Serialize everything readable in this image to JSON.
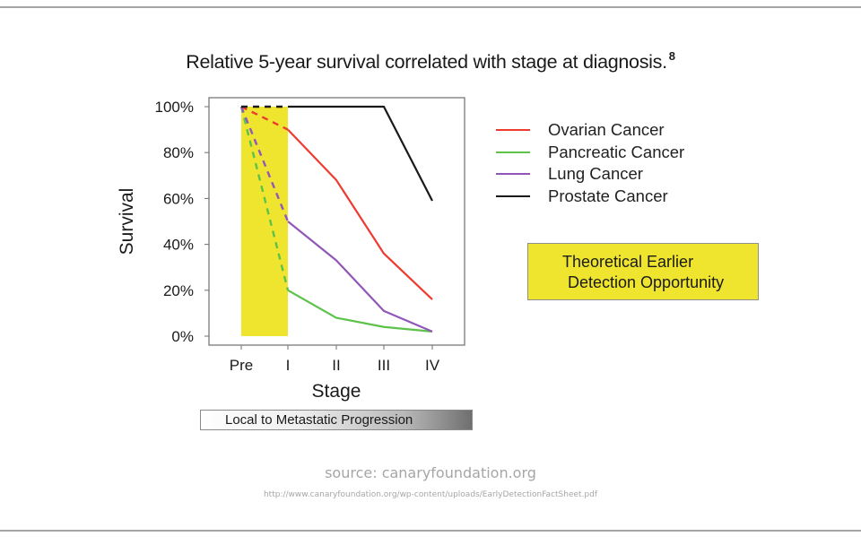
{
  "slide": {
    "title": "Relative 5-year survival correlated with stage at diagnosis.",
    "title_footnote": "8",
    "source_label": "source: canaryfoundation.org",
    "source_url": "http://www.canaryfoundation.org/wp-content/uploads/EarlyDetectionFactSheet.pdf"
  },
  "callout": {
    "line1": "Theoretical Earlier",
    "line2": "Detection Opportunity",
    "color": "#efe52f"
  },
  "progression_bar": {
    "label": "Local to Metastatic Progression"
  },
  "legend": {
    "items": [
      {
        "label": "Ovarian Cancer",
        "color": "#ee3b2f"
      },
      {
        "label": "Pancreatic Cancer",
        "color": "#5cc24a"
      },
      {
        "label": "Lung Cancer",
        "color": "#9157b8"
      },
      {
        "label": "Prostate Cancer",
        "color": "#1a1a1a"
      }
    ]
  },
  "chart_data": {
    "type": "line",
    "title": "Relative 5-year survival correlated with stage at diagnosis.",
    "xlabel": "Stage",
    "ylabel": "Survival",
    "categories": [
      "Pre",
      "I",
      "II",
      "III",
      "IV"
    ],
    "y_ticks": [
      "0%",
      "20%",
      "40%",
      "60%",
      "80%",
      "100%"
    ],
    "ylim": [
      0,
      100
    ],
    "grid": false,
    "legend_position": "right",
    "series": [
      {
        "name": "Ovarian Cancer",
        "color": "#ee3b2f",
        "values": [
          100,
          90,
          68,
          36,
          16
        ]
      },
      {
        "name": "Pancreatic Cancer",
        "color": "#5cc24a",
        "values": [
          100,
          20,
          8,
          4,
          2
        ]
      },
      {
        "name": "Lung Cancer",
        "color": "#9157b8",
        "values": [
          100,
          50,
          33,
          11,
          2
        ]
      },
      {
        "name": "Prostate Cancer",
        "color": "#1a1a1a",
        "values": [
          100,
          100,
          100,
          100,
          59
        ]
      }
    ],
    "annotations": [
      {
        "type": "shaded_region",
        "x_from": "Pre",
        "x_to": "I",
        "color": "#efe52f",
        "label": "Theoretical Earlier Detection Opportunity"
      },
      {
        "type": "note",
        "text": "Segments from Pre to I are dashed (theoretical)"
      }
    ]
  }
}
